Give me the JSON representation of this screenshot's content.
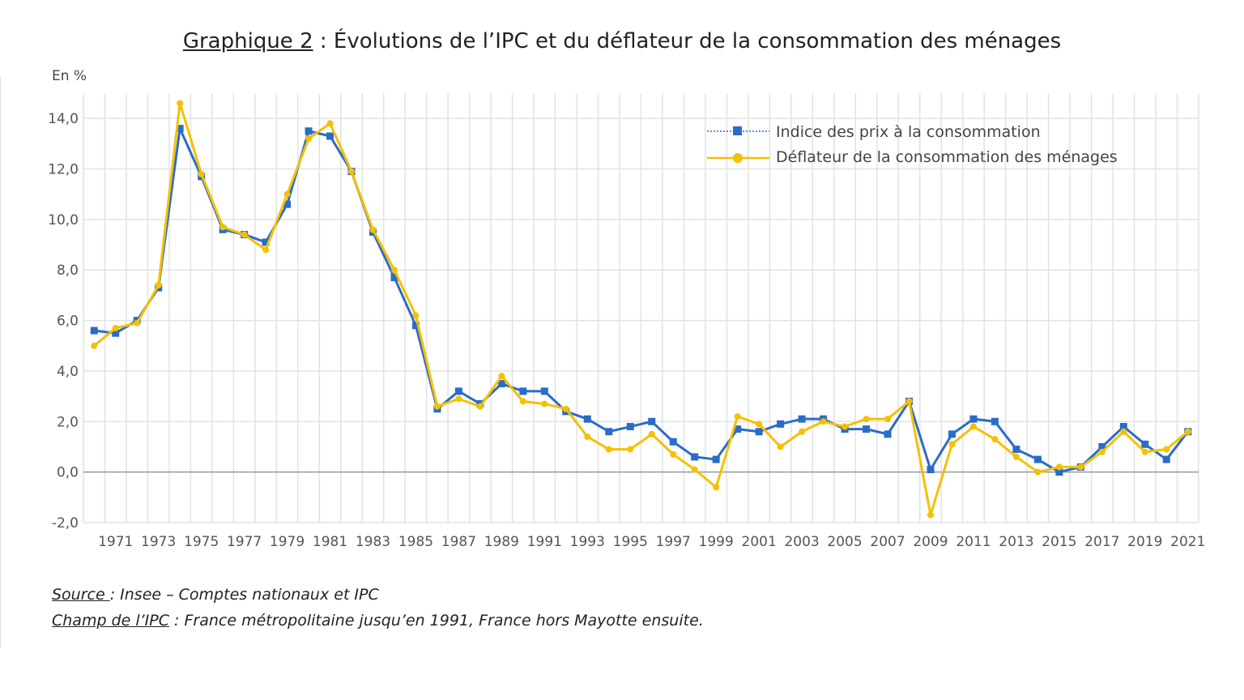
{
  "title": {
    "label": "Graphique 2",
    "rest": " : Évolutions de l’IPC et du déflateur de la consommation des ménages"
  },
  "chart_data": {
    "type": "line",
    "title": "Graphique 2 : Évolutions de l’IPC et du déflateur de la consommation des ménages",
    "ylabel": "En %",
    "ylim": [
      -2,
      15
    ],
    "yticks": [
      "-2,0",
      "0,0",
      "2,0",
      "4,0",
      "6,0",
      "8,0",
      "10,0",
      "12,0",
      "14,0"
    ],
    "xticks": [
      "1971",
      "1973",
      "1975",
      "1977",
      "1979",
      "1981",
      "1983",
      "1985",
      "1987",
      "1989",
      "1991",
      "1993",
      "1995",
      "1997",
      "1999",
      "2001",
      "2003",
      "2005",
      "2007",
      "2009",
      "2011",
      "2013",
      "2015",
      "2017",
      "2019",
      "2021"
    ],
    "grid": true,
    "legend_position": "top-right",
    "x": [
      1970,
      1971,
      1972,
      1973,
      1974,
      1975,
      1976,
      1977,
      1978,
      1979,
      1980,
      1981,
      1982,
      1983,
      1984,
      1985,
      1986,
      1987,
      1988,
      1989,
      1990,
      1991,
      1992,
      1993,
      1994,
      1995,
      1996,
      1997,
      1998,
      1999,
      2000,
      2001,
      2002,
      2003,
      2004,
      2005,
      2006,
      2007,
      2008,
      2009,
      2010,
      2011,
      2012,
      2013,
      2014,
      2015,
      2016,
      2017,
      2018,
      2019,
      2020,
      2021
    ],
    "series": [
      {
        "name": "Indice des prix à la consommation",
        "color": "#2a6cc8",
        "marker": "square",
        "values": [
          5.6,
          5.5,
          6.0,
          7.3,
          13.6,
          11.7,
          9.6,
          9.4,
          9.1,
          10.6,
          13.5,
          13.3,
          11.9,
          9.5,
          7.7,
          5.8,
          2.5,
          3.2,
          2.7,
          3.5,
          3.2,
          3.2,
          2.4,
          2.1,
          1.6,
          1.8,
          2.0,
          1.2,
          0.6,
          0.5,
          1.7,
          1.6,
          1.9,
          2.1,
          2.1,
          1.7,
          1.7,
          1.5,
          2.8,
          0.1,
          1.5,
          2.1,
          2.0,
          0.9,
          0.5,
          0.0,
          0.2,
          1.0,
          1.8,
          1.1,
          0.5,
          1.6
        ]
      },
      {
        "name": "Déflateur de la consommation des ménages",
        "color": "#f5c000",
        "marker": "circle",
        "values": [
          5.0,
          5.7,
          5.9,
          7.4,
          14.6,
          11.8,
          9.7,
          9.4,
          8.8,
          11.0,
          13.2,
          13.8,
          11.9,
          9.6,
          8.0,
          6.2,
          2.6,
          2.9,
          2.6,
          3.8,
          2.8,
          2.7,
          2.5,
          1.4,
          0.9,
          0.9,
          1.5,
          0.7,
          0.1,
          -0.6,
          2.2,
          1.9,
          1.0,
          1.6,
          2.0,
          1.8,
          2.1,
          2.1,
          2.8,
          -1.7,
          1.1,
          1.8,
          1.3,
          0.6,
          0.0,
          0.2,
          0.2,
          0.8,
          1.6,
          0.8,
          0.9,
          1.6
        ]
      }
    ]
  },
  "notes": {
    "source_label": "Source ",
    "source_text": ": Insee – Comptes nationaux et IPC",
    "champ_label": "Champ de l’IPC",
    "champ_text": " : France métropolitaine jusqu’en 1991, France hors Mayotte ensuite."
  }
}
